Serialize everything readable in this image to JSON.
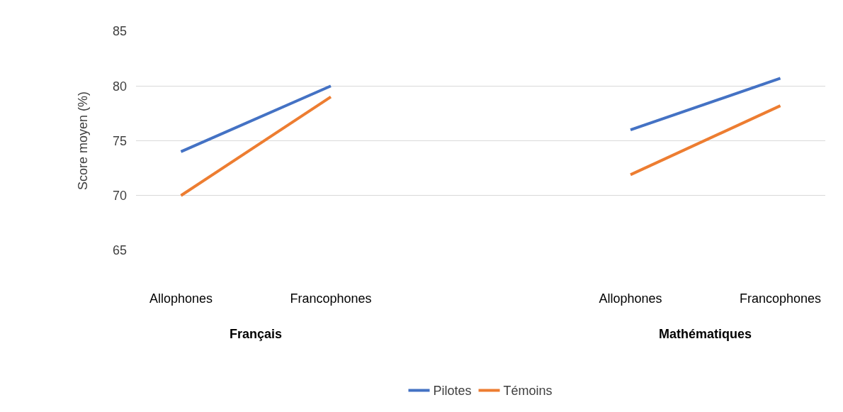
{
  "chart_data": {
    "type": "line",
    "ylabel": "Score moyen (%)",
    "categories": [
      "Allophones",
      "Francophones",
      null,
      "Allophones",
      "Francophones"
    ],
    "series": [
      {
        "name": "Pilotes",
        "color": "#4472c4",
        "values": [
          74,
          80,
          null,
          76,
          80.7
        ]
      },
      {
        "name": "Témoins",
        "color": "#ed7d31",
        "values": [
          70,
          79,
          null,
          71.9,
          78.2
        ]
      }
    ],
    "annotations": [
      "Français",
      "Mathématiques"
    ],
    "ylim": [
      65,
      85
    ],
    "yticks": [
      65,
      70,
      75,
      80,
      85
    ],
    "grid": "y",
    "legend": "bottom",
    "marker": "none",
    "line_style": "solid"
  }
}
